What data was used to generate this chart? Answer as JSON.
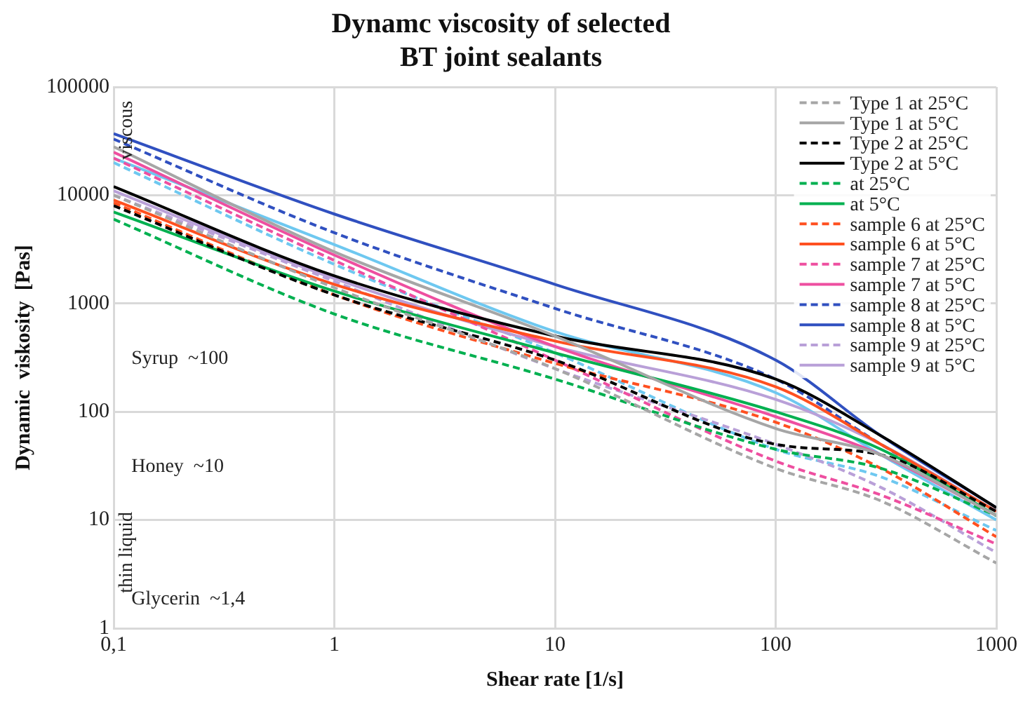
{
  "chart_data": {
    "type": "line",
    "title": "Dynamc viscosity of selected\nBT joint sealants",
    "xlabel": "Shear rate [1/s]",
    "ylabel": "Dynamic  viskosity  [Pas]",
    "log": "xy",
    "grid": true,
    "legend": "top right",
    "marker": "none",
    "xlim": [
      0.1,
      1000
    ],
    "xticks": [
      {
        "value": 0.1,
        "label": "0,1"
      },
      1,
      10,
      100,
      1000
    ],
    "ylim": [
      1,
      100000
    ],
    "yticks": [
      1,
      10,
      100,
      1000,
      10000,
      100000
    ],
    "annotations": [
      "viscous",
      "thin liquid",
      "Syrup  ~100",
      "Honey  ~10",
      "Glycerin  ~1,4"
    ],
    "x": [
      0.1,
      1,
      10,
      100,
      300,
      1000
    ],
    "series": [
      {
        "name": "Type 1 at 25°C",
        "color": "#a6a6a6",
        "line_style": "dashed",
        "values": [
          10000,
          1400,
          250,
          30,
          15,
          4
        ]
      },
      {
        "name": "Type 1 at 5°C",
        "color": "#a6a6a6",
        "line_style": "solid",
        "values": [
          28000,
          3000,
          500,
          70,
          40,
          11
        ]
      },
      {
        "name": "Type 2 at 25°C",
        "color": "#000000",
        "line_style": "dashed",
        "values": [
          8000,
          1200,
          300,
          50,
          40,
          12
        ]
      },
      {
        "name": "Type 2 at 5°C",
        "color": "#000000",
        "line_style": "solid",
        "values": [
          12000,
          1800,
          500,
          200,
          60,
          13
        ]
      },
      {
        "name": "at 25°C",
        "color": "#00b050",
        "line_style": "dashed",
        "values": [
          6000,
          800,
          200,
          45,
          30,
          11
        ]
      },
      {
        "name": "at 5°C",
        "color": "#00b050",
        "line_style": "solid",
        "values": [
          7000,
          1300,
          350,
          100,
          45,
          11
        ]
      },
      {
        "name": "sample 6 at 25°C",
        "color": "#ff5020",
        "line_style": "dashed",
        "values": [
          8500,
          1200,
          280,
          80,
          30,
          7
        ]
      },
      {
        "name": "sample 6 at 5°C",
        "color": "#ff5020",
        "line_style": "solid",
        "values": [
          9000,
          1500,
          450,
          170,
          50,
          12
        ]
      },
      {
        "name": "sample 7 at 25°C",
        "color": "#ee4fa0",
        "line_style": "dashed",
        "values": [
          22000,
          2500,
          300,
          35,
          17,
          6
        ]
      },
      {
        "name": "sample 7 at 5°C",
        "color": "#ee4fa0",
        "line_style": "solid",
        "values": [
          25000,
          2800,
          400,
          90,
          40,
          11
        ]
      },
      {
        "name": "sample 8 at 25°C",
        "color": "#3050c0",
        "line_style": "dashed",
        "values": [
          33000,
          4500,
          900,
          200,
          50,
          12
        ]
      },
      {
        "name": "sample 8 at 5°C",
        "color": "#3050c0",
        "line_style": "solid",
        "values": [
          37000,
          6700,
          1500,
          300,
          60,
          13
        ]
      },
      {
        "name": "sample 9 at 25°C",
        "color": "#b9a0d8",
        "line_style": "dashed",
        "values": [
          10000,
          1600,
          250,
          50,
          20,
          5
        ]
      },
      {
        "name": "sample 9 at 5°C",
        "color": "#b9a0d8",
        "line_style": "solid",
        "values": [
          11000,
          1700,
          400,
          130,
          50,
          12
        ]
      },
      {
        "color": "#6ec8f0",
        "line_style": "dashed",
        "values": [
          20000,
          2300,
          350,
          45,
          25,
          8
        ]
      },
      {
        "color": "#6ec8f0",
        "line_style": "solid",
        "values": [
          22000,
          3500,
          550,
          150,
          40,
          10
        ]
      }
    ]
  }
}
